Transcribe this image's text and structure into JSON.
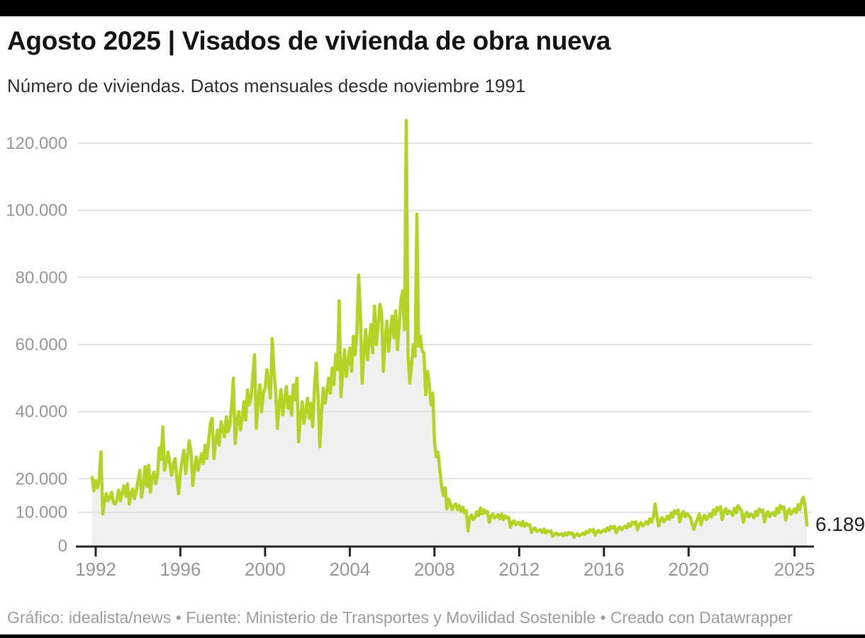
{
  "page": {
    "title": "Agosto 2025 | Visados de vivienda de obra nueva",
    "subtitle": "Número de viviendas. Datos mensuales desde noviembre 1991",
    "footer": "Gráfico: idealista/news • Fuente: Ministerio de Transportes y Movilidad Sostenible • Creado con Datawrapper"
  },
  "chart_data": {
    "type": "line",
    "title": "Agosto 2025 | Visados de vivienda de obra nueva",
    "subtitle": "Número de viviendas. Datos mensuales desde noviembre 1991",
    "frequency": "monthly",
    "x_start_month": "1991-11",
    "x_end_month": "2025-08",
    "ylim": [
      0,
      126800
    ],
    "grid": true,
    "area_fill": true,
    "legend": "none",
    "end_label": "6.189",
    "last_value": 6189,
    "peak_value": 126800,
    "peak_month": "2006-09",
    "colors": {
      "line": "#b4d327",
      "area": "#f0f0f0",
      "grid": "#e2e2e2",
      "axis": "#262626",
      "tick_label": "#979797"
    },
    "y_ticks": [
      {
        "value": 0,
        "label": "0"
      },
      {
        "value": 10000,
        "label": "10.000"
      },
      {
        "value": 20000,
        "label": "20.000"
      },
      {
        "value": 40000,
        "label": "40.000"
      },
      {
        "value": 60000,
        "label": "60.000"
      },
      {
        "value": 80000,
        "label": "80.000"
      },
      {
        "value": 100000,
        "label": "100.000"
      },
      {
        "value": 120000,
        "label": "120.000"
      }
    ],
    "x_ticks": [
      {
        "year": 1992,
        "label": "1992"
      },
      {
        "year": 1996,
        "label": "1996"
      },
      {
        "year": 2000,
        "label": "2000"
      },
      {
        "year": 2004,
        "label": "2004"
      },
      {
        "year": 2008,
        "label": "2008"
      },
      {
        "year": 2012,
        "label": "2012"
      },
      {
        "year": 2016,
        "label": "2016"
      },
      {
        "year": 2020,
        "label": "2020"
      },
      {
        "year": 2025,
        "label": "2025"
      }
    ],
    "values": [
      20400,
      16400,
      19400,
      17300,
      20200,
      28000,
      9500,
      13100,
      15600,
      13500,
      14500,
      16000,
      13000,
      12400,
      13700,
      16600,
      13400,
      15800,
      17900,
      14800,
      18500,
      12400,
      15500,
      17000,
      14000,
      16500,
      19400,
      22500,
      14500,
      18000,
      23600,
      17700,
      24000,
      16000,
      20500,
      22000,
      18500,
      21000,
      29200,
      25700,
      35500,
      22500,
      25000,
      28000,
      24500,
      21000,
      24500,
      26000,
      20000,
      15500,
      22000,
      25500,
      28500,
      21500,
      26500,
      31400,
      28000,
      18000,
      23000,
      26500,
      22500,
      25000,
      27500,
      24500,
      30000,
      26000,
      31500,
      36500,
      38000,
      26000,
      31000,
      34500,
      30000,
      37000,
      35000,
      32500,
      38500,
      34000,
      36000,
      41500,
      50000,
      30500,
      37000,
      40000,
      34500,
      38000,
      43000,
      37500,
      46500,
      42000,
      44000,
      50500,
      57000,
      35000,
      43500,
      48000,
      40000,
      45500,
      47000,
      52500,
      48500,
      44000,
      61800,
      52000,
      46000,
      35000,
      42500,
      46500,
      39000,
      43000,
      47500,
      41000,
      44500,
      39000,
      48000,
      43500,
      50000,
      31000,
      38500,
      43000,
      36500,
      40000,
      44000,
      38000,
      42500,
      35500,
      47500,
      54500,
      44500,
      29500,
      40000,
      47000,
      42500,
      46000,
      50000,
      45500,
      53000,
      48000,
      57000,
      52500,
      73000,
      44500,
      52000,
      58500,
      50500,
      55000,
      59000,
      52000,
      62500,
      57000,
      63500,
      80700,
      69000,
      48500,
      58000,
      64500,
      55500,
      61000,
      66000,
      57500,
      71500,
      60000,
      65500,
      72000,
      69500,
      52000,
      61500,
      67000,
      58000,
      64000,
      68500,
      62000,
      70000,
      58500,
      66000,
      73500,
      76000,
      64500,
      126800,
      57000,
      48500,
      54000,
      60000,
      56500,
      98900,
      59500,
      62500,
      58000,
      57500,
      45000,
      52000,
      48500,
      42000,
      45500,
      31000,
      26500,
      28000,
      22500,
      18000,
      15000,
      17300,
      11000,
      14000,
      12500,
      10800,
      12000,
      12500,
      10800,
      12000,
      10200,
      11500,
      9800,
      10500,
      4400,
      8500,
      9200,
      7800,
      8500,
      10200,
      9000,
      11300,
      9500,
      10800,
      9800,
      10200,
      7000,
      8800,
      9500,
      8300,
      8800,
      9300,
      8000,
      9500,
      7800,
      9000,
      8300,
      8500,
      5500,
      7000,
      7500,
      6300,
      6800,
      7000,
      6000,
      7300,
      5800,
      6700,
      6200,
      6300,
      4000,
      5000,
      5300,
      4300,
      4600,
      4800,
      4000,
      5000,
      3800,
      4500,
      4200,
      4500,
      2800,
      3500,
      3800,
      3200,
      3400,
      3600,
      3000,
      3800,
      3200,
      4000,
      3600,
      3900,
      2500,
      3300,
      3600,
      3000,
      3300,
      3800,
      3400,
      4300,
      3900,
      4800,
      4400,
      4900,
      3200,
      4200,
      4600,
      3900,
      4300,
      4800,
      4300,
      5400,
      4700,
      5800,
      5300,
      5900,
      3900,
      5100,
      5600,
      4800,
      5300,
      5900,
      5300,
      6600,
      5800,
      7100,
      6500,
      7200,
      4800,
      6300,
      6900,
      5900,
      6500,
      7200,
      6500,
      8100,
      7100,
      8700,
      12500,
      8800,
      5900,
      7700,
      8400,
      7200,
      7900,
      8800,
      7900,
      9800,
      8600,
      10500,
      9700,
      10700,
      7100,
      9300,
      10200,
      8700,
      9600,
      9000,
      8500,
      6500,
      4900,
      6800,
      8000,
      9500,
      6300,
      8300,
      9100,
      7800,
      8600,
      9500,
      8600,
      10700,
      9400,
      11400,
      10600,
      11700,
      7800,
      10200,
      11100,
      9500,
      10400,
      10000,
      9000,
      11200,
      9800,
      12000,
      11100,
      10500,
      7000,
      9200,
      10000,
      8600,
      9400,
      9200,
      8300,
      10300,
      9000,
      11000,
      10200,
      10700,
      7100,
      9400,
      10200,
      8700,
      9600,
      10000,
      9000,
      11200,
      9800,
      12000,
      11100,
      11600,
      7700,
      10100,
      11000,
      9400,
      10300,
      11000,
      9900,
      12300,
      10800,
      13200,
      14500,
      12000,
      6189
    ]
  }
}
